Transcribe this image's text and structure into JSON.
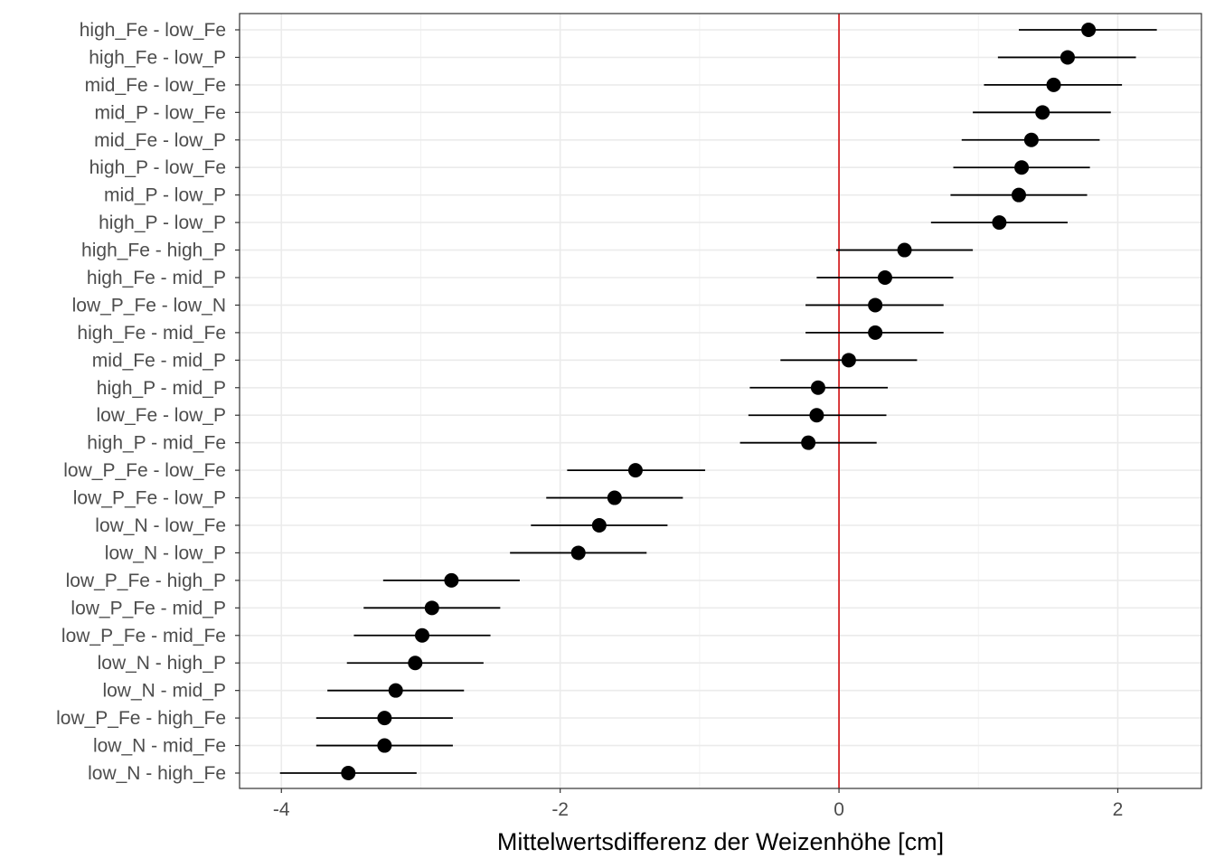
{
  "chart_data": {
    "type": "scatter",
    "subtype": "point-range / interval plot",
    "xlabel": "Mittelwertsdifferenz der Weizenhöhe [cm]",
    "ylabel": "",
    "xlim": [
      -4.3,
      2.6
    ],
    "x_ticks": [
      -4,
      -2,
      0,
      2
    ],
    "x_tick_labels": [
      "-4",
      "-2",
      "0",
      "2"
    ],
    "grid": true,
    "theme": "bw",
    "reference_line": {
      "x": 0,
      "color": "#d62728"
    },
    "point_color": "#000000",
    "interval_color": "#000000",
    "categories": [
      "high_Fe - low_Fe",
      "high_Fe - low_P",
      "mid_Fe - low_Fe",
      "mid_P - low_Fe",
      "mid_Fe - low_P",
      "high_P - low_Fe",
      "mid_P - low_P",
      "high_P - low_P",
      "high_Fe - high_P",
      "high_Fe - mid_P",
      "low_P_Fe - low_N",
      "high_Fe - mid_Fe",
      "mid_Fe - mid_P",
      "high_P - mid_P",
      "low_Fe - low_P",
      "high_P - mid_Fe",
      "low_P_Fe - low_Fe",
      "low_P_Fe - low_P",
      "low_N - low_Fe",
      "low_N - low_P",
      "low_P_Fe - high_P",
      "low_P_Fe - mid_P",
      "low_P_Fe - mid_Fe",
      "low_N - high_P",
      "low_N - mid_P",
      "low_P_Fe - high_Fe",
      "low_N - mid_Fe",
      "low_N - high_Fe"
    ],
    "series": [
      {
        "estimate": [
          1.79,
          1.64,
          1.54,
          1.46,
          1.38,
          1.31,
          1.29,
          1.15,
          0.47,
          0.33,
          0.26,
          0.26,
          0.07,
          -0.15,
          -0.16,
          -0.22,
          -1.46,
          -1.61,
          -1.72,
          -1.87,
          -2.78,
          -2.92,
          -2.99,
          -3.04,
          -3.18,
          -3.26,
          -3.26,
          -3.52
        ],
        "lower": [
          1.29,
          1.14,
          1.04,
          0.96,
          0.88,
          0.82,
          0.8,
          0.66,
          -0.02,
          -0.16,
          -0.24,
          -0.24,
          -0.42,
          -0.64,
          -0.65,
          -0.71,
          -1.95,
          -2.1,
          -2.21,
          -2.36,
          -3.27,
          -3.41,
          -3.48,
          -3.53,
          -3.67,
          -3.75,
          -3.75,
          -4.01
        ],
        "upper": [
          2.28,
          2.13,
          2.03,
          1.95,
          1.87,
          1.8,
          1.78,
          1.64,
          0.96,
          0.82,
          0.75,
          0.75,
          0.56,
          0.35,
          0.34,
          0.27,
          -0.96,
          -1.12,
          -1.23,
          -1.38,
          -2.29,
          -2.43,
          -2.5,
          -2.55,
          -2.69,
          -2.77,
          -2.77,
          -3.03
        ]
      }
    ]
  }
}
